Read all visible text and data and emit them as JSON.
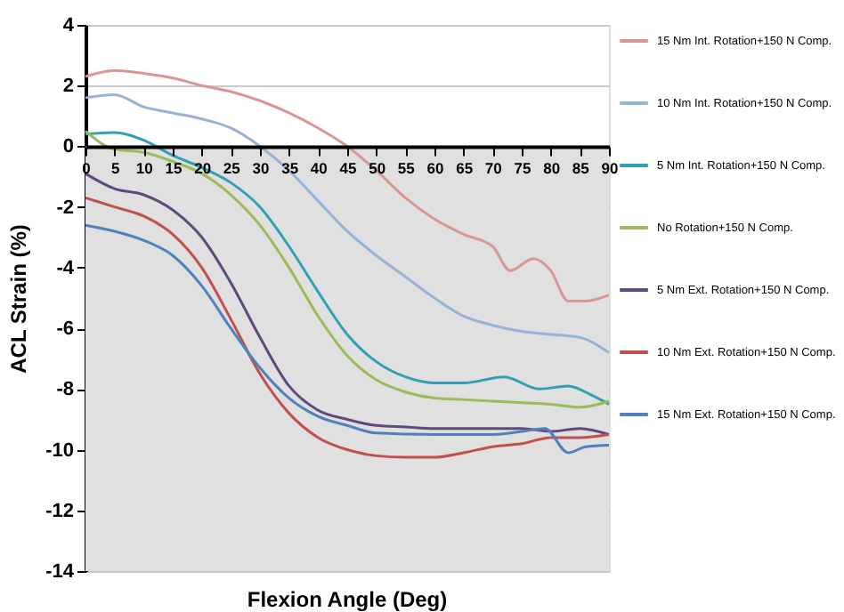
{
  "chart_data": {
    "type": "line",
    "xlabel": "Flexion Angle (Deg)",
    "ylabel": "ACL Strain (%)",
    "x": [
      0,
      5,
      10,
      15,
      20,
      25,
      30,
      35,
      40,
      45,
      50,
      55,
      60,
      65,
      70,
      75,
      80,
      85,
      90
    ],
    "xlim": [
      0,
      90
    ],
    "xticks": [
      0,
      5,
      10,
      15,
      20,
      25,
      30,
      35,
      40,
      45,
      50,
      55,
      60,
      65,
      70,
      75,
      80,
      85,
      90
    ],
    "ylim": [
      -14,
      4
    ],
    "yticks": [
      -14,
      -12,
      -10,
      -8,
      -6,
      -4,
      -2,
      0,
      2,
      4
    ],
    "grid": "y",
    "legend": "right",
    "marker": "none",
    "line_style": "solid",
    "bands": [
      {
        "axis": "y",
        "from": -14,
        "to": 0,
        "label": null,
        "color": "#e0e0e0"
      }
    ],
    "series": [
      {
        "name": "15 Nm Int. Rotation+150 N Comp.",
        "color": "#d99694",
        "x": [
          0,
          5,
          10,
          15,
          20,
          25,
          30,
          35,
          40,
          45,
          50,
          55,
          60,
          65,
          70,
          73,
          77,
          80,
          83,
          86,
          90
        ],
        "values": [
          2.3,
          2.5,
          2.4,
          2.25,
          2.0,
          1.8,
          1.5,
          1.1,
          0.6,
          0,
          -0.8,
          -1.7,
          -2.4,
          -2.9,
          -3.3,
          -4.1,
          -3.7,
          -4.1,
          -5.1,
          -5.1,
          -4.9
        ]
      },
      {
        "name": "10 Nm Int. Rotation+150 N Comp.",
        "color": "#95b3d7",
        "values": [
          1.6,
          1.7,
          1.3,
          1.1,
          0.9,
          0.6,
          0,
          -0.8,
          -1.8,
          -2.8,
          -3.6,
          -4.3,
          -5.0,
          -5.6,
          -5.9,
          -6.1,
          -6.2,
          -6.3,
          -6.8
        ]
      },
      {
        "name": "5 Nm Int. Rotation+150 N Comp.",
        "color": "#31a0b5",
        "x": [
          0,
          5,
          10,
          15,
          20,
          25,
          30,
          35,
          40,
          45,
          50,
          55,
          60,
          65,
          72,
          78,
          83,
          87,
          90
        ],
        "values": [
          0.4,
          0.45,
          0.2,
          -0.3,
          -0.7,
          -1.2,
          -2.0,
          -3.3,
          -4.8,
          -6.2,
          -7.1,
          -7.6,
          -7.8,
          -7.8,
          -7.6,
          -8.0,
          -7.9,
          -8.2,
          -8.5
        ]
      },
      {
        "name": "No Rotation+150 N Comp.",
        "color": "#9bbb59",
        "values": [
          0.5,
          -0.1,
          -0.2,
          -0.5,
          -0.9,
          -1.6,
          -2.6,
          -4.0,
          -5.6,
          -6.9,
          -7.7,
          -8.1,
          -8.3,
          -8.35,
          -8.4,
          -8.45,
          -8.5,
          -8.6,
          -8.4
        ]
      },
      {
        "name": "5 Nm Ext. Rotation+150 N Comp.",
        "color": "#604a7b",
        "values": [
          -0.9,
          -1.4,
          -1.6,
          -2.1,
          -3.0,
          -4.5,
          -6.3,
          -7.9,
          -8.7,
          -9.0,
          -9.2,
          -9.25,
          -9.3,
          -9.3,
          -9.3,
          -9.3,
          -9.4,
          -9.3,
          -9.5
        ]
      },
      {
        "name": "10 Nm Ext. Rotation+150 N Comp.",
        "color": "#c0504d",
        "values": [
          -1.7,
          -2.0,
          -2.3,
          -2.9,
          -4.0,
          -5.7,
          -7.5,
          -8.8,
          -9.6,
          -10.0,
          -10.2,
          -10.25,
          -10.25,
          -10.1,
          -9.9,
          -9.8,
          -9.6,
          -9.6,
          -9.5
        ]
      },
      {
        "name": "15 Nm Ext. Rotation+150 N Comp.",
        "color": "#4f81bd",
        "x": [
          0,
          5,
          10,
          15,
          20,
          25,
          30,
          35,
          40,
          45,
          50,
          60,
          70,
          75,
          79,
          83,
          86,
          90
        ],
        "values": [
          -2.6,
          -2.8,
          -3.1,
          -3.6,
          -4.6,
          -6.0,
          -7.3,
          -8.3,
          -8.9,
          -9.2,
          -9.45,
          -9.5,
          -9.5,
          -9.4,
          -9.3,
          -10.1,
          -9.9,
          -9.85
        ]
      }
    ]
  }
}
